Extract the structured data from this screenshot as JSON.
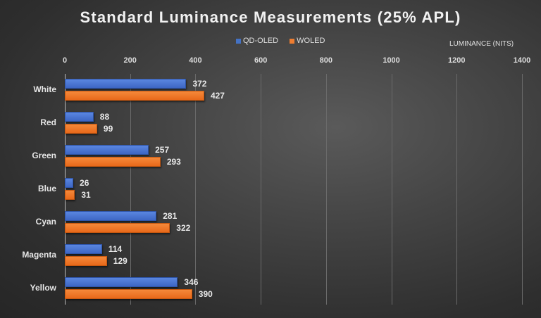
{
  "chart_data": {
    "type": "bar",
    "orientation": "horizontal",
    "title": "Standard Luminance Measurements (25% APL)",
    "xlabel": "LUMINANCE (NITS)",
    "ylabel": "",
    "xlim": [
      0,
      1400
    ],
    "x_ticks": [
      "0",
      "200",
      "400",
      "600",
      "800",
      "1000",
      "1200",
      "1400"
    ],
    "grid": true,
    "legend_position": "top",
    "categories": [
      "White",
      "Red",
      "Green",
      "Blue",
      "Cyan",
      "Magenta",
      "Yellow"
    ],
    "series": [
      {
        "name": "QD-OLED",
        "color": "#4472C4",
        "values": [
          372,
          88,
          257,
          26,
          281,
          114,
          346
        ]
      },
      {
        "name": "WOLED",
        "color": "#ED7D31",
        "values": [
          427,
          99,
          293,
          31,
          322,
          129,
          390
        ]
      }
    ]
  }
}
